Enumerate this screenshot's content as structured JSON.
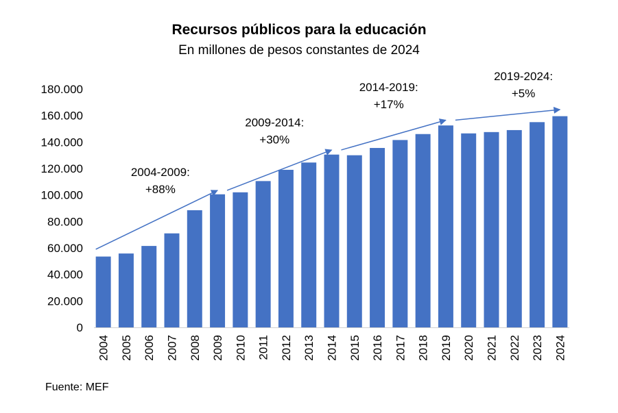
{
  "chart_data": {
    "type": "bar",
    "title": "Recursos públicos para la educación",
    "subtitle": "En millones de pesos constantes de 2024",
    "xlabel": "",
    "ylabel": "",
    "ylim": [
      0,
      180000
    ],
    "yticks": [
      0,
      20000,
      40000,
      60000,
      80000,
      100000,
      120000,
      140000,
      160000,
      180000
    ],
    "ytick_labels": [
      "0",
      "20.000",
      "40.000",
      "60.000",
      "80.000",
      "100.000",
      "120.000",
      "140.000",
      "160.000",
      "180.000"
    ],
    "grid": false,
    "categories": [
      "2004",
      "2005",
      "2006",
      "2007",
      "2008",
      "2009",
      "2010",
      "2011",
      "2012",
      "2013",
      "2014",
      "2015",
      "2016",
      "2017",
      "2018",
      "2019",
      "2020",
      "2021",
      "2022",
      "2023",
      "2024"
    ],
    "values": [
      53500,
      55800,
      61500,
      71000,
      88500,
      100500,
      102000,
      110500,
      119000,
      124500,
      130500,
      130000,
      135500,
      141500,
      146000,
      152500,
      146500,
      147500,
      149000,
      155000,
      159500
    ],
    "bar_color": "#4472C4",
    "annotations": [
      {
        "period": "2004-2009:",
        "change": "+88%",
        "from_year": "2004",
        "to_year": "2009",
        "from_value": 59000,
        "to_value": 103500
      },
      {
        "period": "2009-2014:",
        "change": "+30%",
        "from_year": "2009",
        "to_year": "2014",
        "from_value": 103500,
        "to_value": 134000
      },
      {
        "period": "2014-2019:",
        "change": "+17%",
        "from_year": "2014",
        "to_year": "2019",
        "from_value": 134000,
        "to_value": 156500
      },
      {
        "period": "2019-2024:",
        "change": "+5%",
        "from_year": "2019",
        "to_year": "2024",
        "from_value": 156500,
        "to_value": 164500
      }
    ],
    "arrow_color": "#4472C4"
  },
  "source": "Fuente: MEF"
}
